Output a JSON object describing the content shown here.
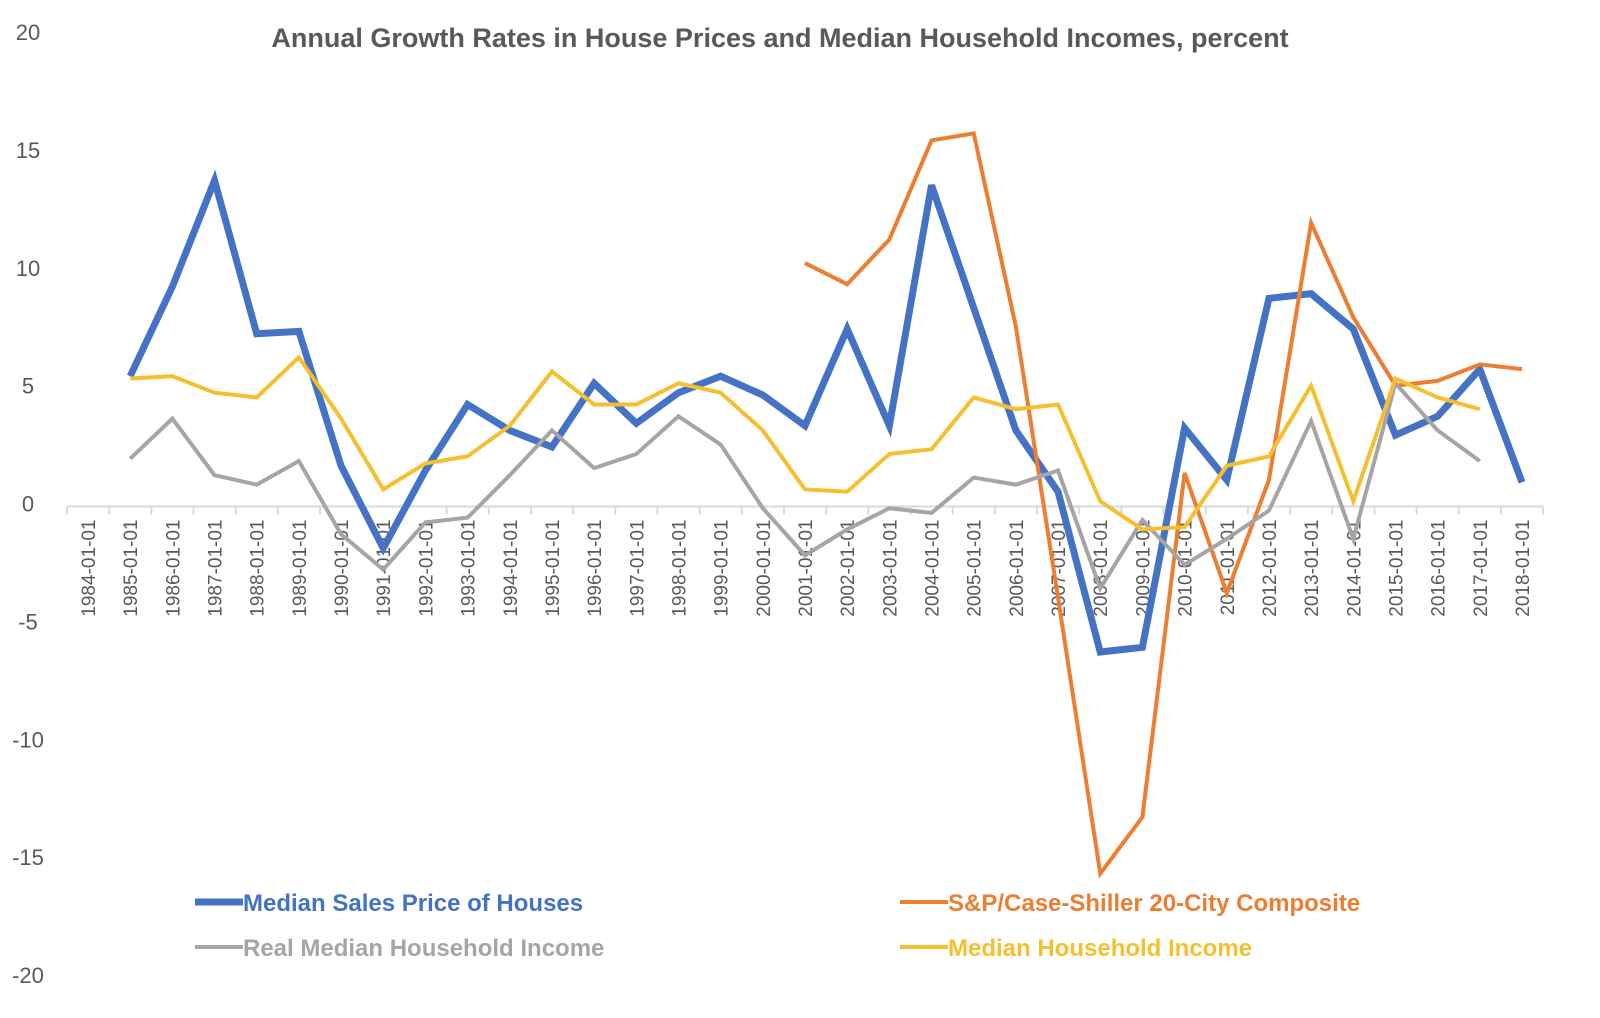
{
  "chart_data": {
    "type": "line",
    "title": "Annual Growth Rates in House Prices and Median Household Incomes, percent",
    "xlabel": "",
    "ylabel": "",
    "ylim": [
      -20,
      20
    ],
    "yticks": [
      20,
      15,
      10,
      5,
      0,
      -5,
      -10,
      -15,
      -20
    ],
    "grid": false,
    "legend_position": "bottom",
    "categories": [
      "1984-01-01",
      "1985-01-01",
      "1986-01-01",
      "1987-01-01",
      "1988-01-01",
      "1989-01-01",
      "1990-01-01",
      "1991-01-01",
      "1992-01-01",
      "1993-01-01",
      "1994-01-01",
      "1995-01-01",
      "1996-01-01",
      "1997-01-01",
      "1998-01-01",
      "1999-01-01",
      "2000-01-01",
      "2001-01-01",
      "2002-01-01",
      "2003-01-01",
      "2004-01-01",
      "2005-01-01",
      "2006-01-01",
      "2007-01-01",
      "2008-01-01",
      "2009-01-01",
      "2010-01-01",
      "2011-01-01",
      "2012-01-01",
      "2013-01-01",
      "2014-01-01",
      "2015-01-01",
      "2016-01-01",
      "2017-01-01",
      "2018-01-01"
    ],
    "series": [
      {
        "name": "Median Sales Price of Houses",
        "color": "#4472C4",
        "values": [
          null,
          5.4,
          9.2,
          13.7,
          7.2,
          7.3,
          1.6,
          -1.9,
          1.4,
          4.2,
          3.1,
          2.4,
          5.1,
          3.4,
          4.7,
          5.4,
          4.6,
          3.3,
          7.4,
          3.3,
          13.5,
          8.3,
          3.1,
          0.5,
          -6.3,
          -6.1,
          3.2,
          1.0,
          8.7,
          8.9,
          7.4,
          2.9,
          3.7,
          5.7,
          0.9
        ]
      },
      {
        "name": "S&P/Case-Shiller 20-City Composite",
        "color": "#ED7D31",
        "values": [
          null,
          null,
          null,
          null,
          null,
          null,
          null,
          null,
          null,
          null,
          null,
          null,
          null,
          null,
          null,
          null,
          null,
          10.2,
          9.3,
          11.2,
          15.4,
          15.7,
          7.5,
          -4.0,
          -15.7,
          -13.3,
          1.3,
          -3.8,
          1.0,
          11.9,
          7.9,
          5.0,
          5.2,
          5.9,
          5.7
        ]
      },
      {
        "name": "Real Median Household Income",
        "color": "#A5A5A5",
        "values": [
          null,
          1.9,
          3.6,
          1.2,
          0.8,
          1.8,
          -1.3,
          -2.8,
          -0.8,
          -0.6,
          1.2,
          3.1,
          1.5,
          2.1,
          3.7,
          2.5,
          -0.2,
          -2.2,
          -1.1,
          -0.2,
          -0.4,
          1.1,
          0.8,
          1.4,
          -3.6,
          -0.7,
          -2.6,
          -1.5,
          -0.3,
          3.5,
          -1.5,
          5.1,
          3.1,
          1.8,
          null
        ]
      },
      {
        "name": "Median Household Income",
        "color": "#F6BF2F",
        "values": [
          null,
          5.3,
          5.4,
          4.7,
          4.5,
          6.2,
          3.6,
          0.6,
          1.7,
          2.0,
          3.3,
          5.6,
          4.2,
          4.2,
          5.1,
          4.7,
          3.1,
          0.6,
          0.5,
          2.1,
          2.3,
          4.5,
          4.0,
          4.2,
          0.1,
          -1.1,
          -1.0,
          1.6,
          2.0,
          5.0,
          0.1,
          5.3,
          4.5,
          4.0,
          null
        ]
      }
    ]
  }
}
